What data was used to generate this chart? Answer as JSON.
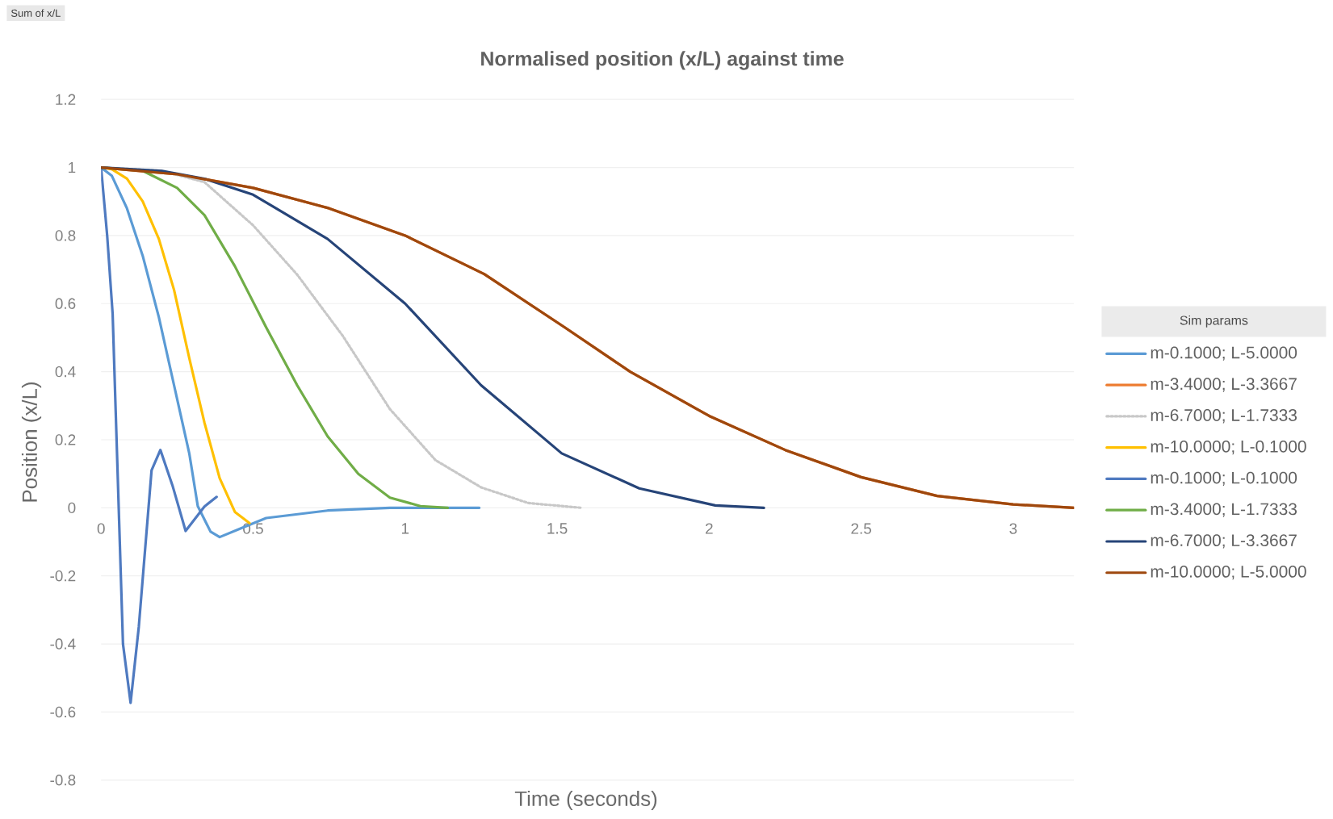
{
  "chart_data": {
    "type": "line",
    "title": "Normalised position (x/L) against time",
    "xlabel": "Time (seconds)",
    "ylabel": "Position (x/L)",
    "legend_title": "Sim params",
    "annotations": [
      "Sum of x/L"
    ],
    "xlim": [
      0,
      3.2
    ],
    "ylim": [
      -0.8,
      1.2
    ],
    "xticks": [
      0,
      0.5,
      1,
      1.5,
      2,
      2.5,
      3
    ],
    "yticks": [
      -0.8,
      -0.6,
      -0.4,
      -0.2,
      0,
      0.2,
      0.4,
      0.6,
      0.8,
      1,
      1.2
    ],
    "grid": "y",
    "legend": "right",
    "series": [
      {
        "name": "m-0.1000; L-5.0000",
        "color": "#5b9bd5",
        "x": [
          0,
          0.035,
          0.085,
          0.137,
          0.19,
          0.24,
          0.29,
          0.318,
          0.36,
          0.39,
          0.46,
          0.543,
          0.745,
          0.95,
          1.244
        ],
        "values": [
          1,
          0.976,
          0.88,
          0.74,
          0.56,
          0.36,
          0.16,
          0.005,
          -0.07,
          -0.086,
          -0.06,
          -0.03,
          -0.008,
          0,
          0
        ]
      },
      {
        "name": "m-3.4000; L-3.3667",
        "color": "#ed7d31",
        "x": [
          0,
          0.25,
          0.5,
          0.75,
          1,
          1.26,
          1.525,
          1.74,
          2,
          2.25,
          2.5,
          2.75,
          3,
          3.2
        ],
        "values": [
          1,
          0.98,
          0.94,
          0.88,
          0.8,
          0.687,
          0.53,
          0.4,
          0.27,
          0.17,
          0.09,
          0.035,
          0.01,
          0
        ]
      },
      {
        "name": "m-6.7000; L-1.7333",
        "color": "#c8c8c8",
        "line_style": "dotted",
        "x": [
          0,
          0.2,
          0.34,
          0.5,
          0.645,
          0.795,
          0.95,
          1.1,
          1.25,
          1.405,
          1.58
        ],
        "values": [
          1,
          0.99,
          0.957,
          0.83,
          0.685,
          0.505,
          0.29,
          0.14,
          0.06,
          0.014,
          0
        ]
      },
      {
        "name": "m-10.0000; L-0.1000",
        "color": "#ffc000",
        "x": [
          0,
          0.035,
          0.085,
          0.137,
          0.19,
          0.24,
          0.29,
          0.34,
          0.39,
          0.44,
          0.488
        ],
        "values": [
          1,
          0.995,
          0.967,
          0.9,
          0.79,
          0.64,
          0.44,
          0.25,
          0.087,
          -0.012,
          -0.045
        ]
      },
      {
        "name": "m-0.1000; L-0.1000",
        "color": "#4f7ac0",
        "x": [
          0,
          0.02,
          0.038,
          0.072,
          0.097,
          0.124,
          0.166,
          0.195,
          0.235,
          0.278,
          0.34,
          0.38
        ],
        "values": [
          1,
          0.8,
          0.57,
          -0.4,
          -0.573,
          -0.35,
          0.11,
          0.17,
          0.065,
          -0.068,
          0.004,
          0.032
        ]
      },
      {
        "name": "m-3.4000; L-1.7333",
        "color": "#70ad47",
        "x": [
          0,
          0.137,
          0.25,
          0.34,
          0.44,
          0.543,
          0.645,
          0.745,
          0.846,
          0.95,
          1.05,
          1.14
        ],
        "values": [
          1,
          0.99,
          0.94,
          0.86,
          0.71,
          0.53,
          0.36,
          0.21,
          0.1,
          0.03,
          0.005,
          0
        ]
      },
      {
        "name": "m-6.7000; L-3.3667",
        "color": "#264478",
        "x": [
          0,
          0.2,
          0.34,
          0.5,
          0.745,
          1,
          1.25,
          1.515,
          1.77,
          2.02,
          2.18
        ],
        "values": [
          1,
          0.99,
          0.967,
          0.92,
          0.79,
          0.6,
          0.36,
          0.16,
          0.057,
          0.007,
          0
        ]
      },
      {
        "name": "m-10.0000; L-5.0000",
        "color": "#9e480e",
        "x": [
          0,
          0.25,
          0.5,
          0.75,
          1,
          1.26,
          1.525,
          1.74,
          2,
          2.25,
          2.5,
          2.75,
          3,
          3.2
        ],
        "values": [
          1,
          0.98,
          0.94,
          0.88,
          0.8,
          0.687,
          0.53,
          0.4,
          0.27,
          0.17,
          0.09,
          0.035,
          0.01,
          0
        ]
      }
    ]
  }
}
